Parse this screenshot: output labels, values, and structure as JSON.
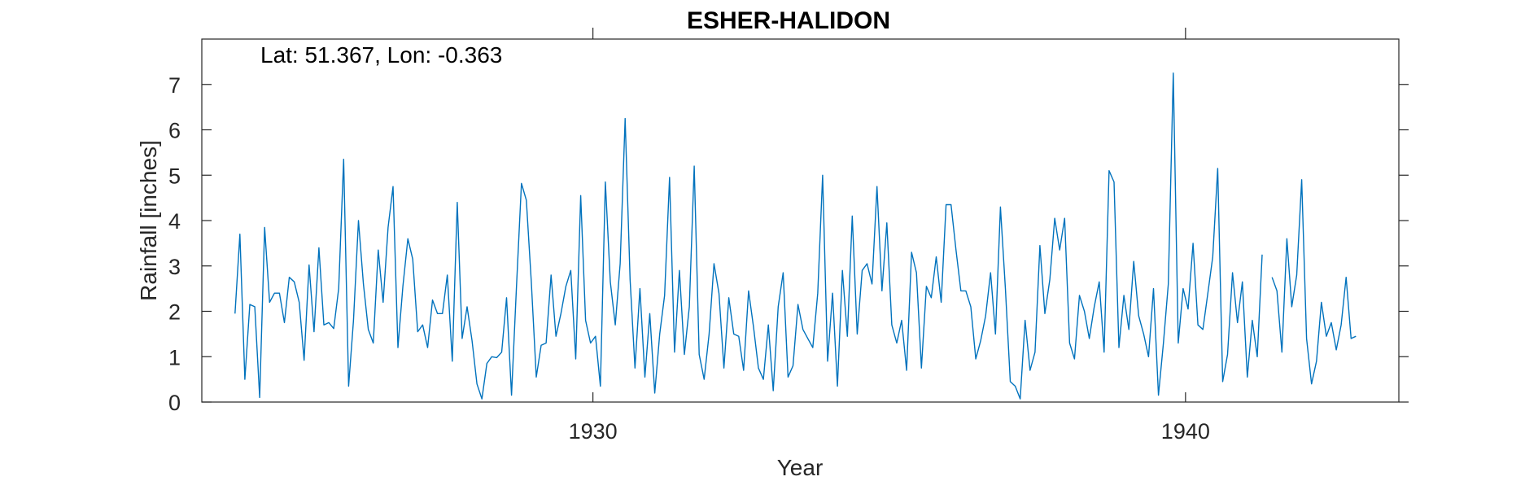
{
  "chart_data": {
    "type": "line",
    "title": "ESHER-HALIDON",
    "xlabel": "Year",
    "ylabel": "Rainfall [inches]",
    "annotation": "Lat: 51.367, Lon: -0.363",
    "xlim": [
      1923.4,
      1943.6
    ],
    "ylim": [
      0,
      8
    ],
    "xticks": [
      1930,
      1940
    ],
    "yticks": [
      0,
      1,
      2,
      3,
      4,
      5,
      6,
      7
    ],
    "grid": false,
    "line_color": "#0072BD",
    "x_start": 1923.96,
    "x_step": 0.0833333,
    "values": [
      1.95,
      3.7,
      0.5,
      2.15,
      2.1,
      0.1,
      3.85,
      2.2,
      2.4,
      2.4,
      1.75,
      2.75,
      2.65,
      2.2,
      0.92,
      3.02,
      1.55,
      3.4,
      1.7,
      1.75,
      1.62,
      2.5,
      5.35,
      0.35,
      1.8,
      4.0,
      2.6,
      1.6,
      1.3,
      3.35,
      2.2,
      3.85,
      4.75,
      1.2,
      2.55,
      3.6,
      3.15,
      1.55,
      1.7,
      1.2,
      2.25,
      1.95,
      1.95,
      2.8,
      0.9,
      4.4,
      1.4,
      2.1,
      1.35,
      0.4,
      0.07,
      0.85,
      1.0,
      0.98,
      1.1,
      2.3,
      0.15,
      2.55,
      4.82,
      4.45,
      2.65,
      0.55,
      1.25,
      1.3,
      2.8,
      1.45,
      1.95,
      2.55,
      2.9,
      0.95,
      4.55,
      1.8,
      1.3,
      1.45,
      0.35,
      4.85,
      2.65,
      1.7,
      3.05,
      6.25,
      2.7,
      0.75,
      2.5,
      0.55,
      1.95,
      0.2,
      1.5,
      2.35,
      4.95,
      1.1,
      2.9,
      1.05,
      2.1,
      5.2,
      1.05,
      0.5,
      1.5,
      3.05,
      2.4,
      0.75,
      2.3,
      1.5,
      1.45,
      0.7,
      2.45,
      1.65,
      0.75,
      0.5,
      1.7,
      0.25,
      2.1,
      2.85,
      0.55,
      0.8,
      2.15,
      1.6,
      1.4,
      1.2,
      2.4,
      5.0,
      0.9,
      2.4,
      0.35,
      2.9,
      1.45,
      4.1,
      1.5,
      2.9,
      3.05,
      2.6,
      4.75,
      2.45,
      3.95,
      1.7,
      1.3,
      1.8,
      0.7,
      3.3,
      2.85,
      0.75,
      2.55,
      2.3,
      3.2,
      2.2,
      4.35,
      4.35,
      3.35,
      2.45,
      2.45,
      2.1,
      0.95,
      1.35,
      1.9,
      2.85,
      1.5,
      4.3,
      2.5,
      0.45,
      0.35,
      0.07,
      1.8,
      0.7,
      1.1,
      3.45,
      1.95,
      2.7,
      4.05,
      3.35,
      4.05,
      1.3,
      0.95,
      2.35,
      2.0,
      1.4,
      2.1,
      2.65,
      1.1,
      5.1,
      4.85,
      1.2,
      2.35,
      1.6,
      3.1,
      1.9,
      1.5,
      1.0,
      2.5,
      0.15,
      1.3,
      2.6,
      7.25,
      1.3,
      2.5,
      2.05,
      3.5,
      1.7,
      1.6,
      2.4,
      3.2,
      5.15,
      0.45,
      1.05,
      2.85,
      1.75,
      2.65,
      0.55,
      1.8,
      1.0,
      3.25,
      null,
      2.75,
      2.45,
      1.1,
      3.6,
      2.1,
      2.8,
      4.9,
      1.4,
      0.4,
      0.9,
      2.2,
      1.45,
      1.75,
      1.15,
      1.7,
      2.75,
      1.4,
      1.45
    ]
  }
}
